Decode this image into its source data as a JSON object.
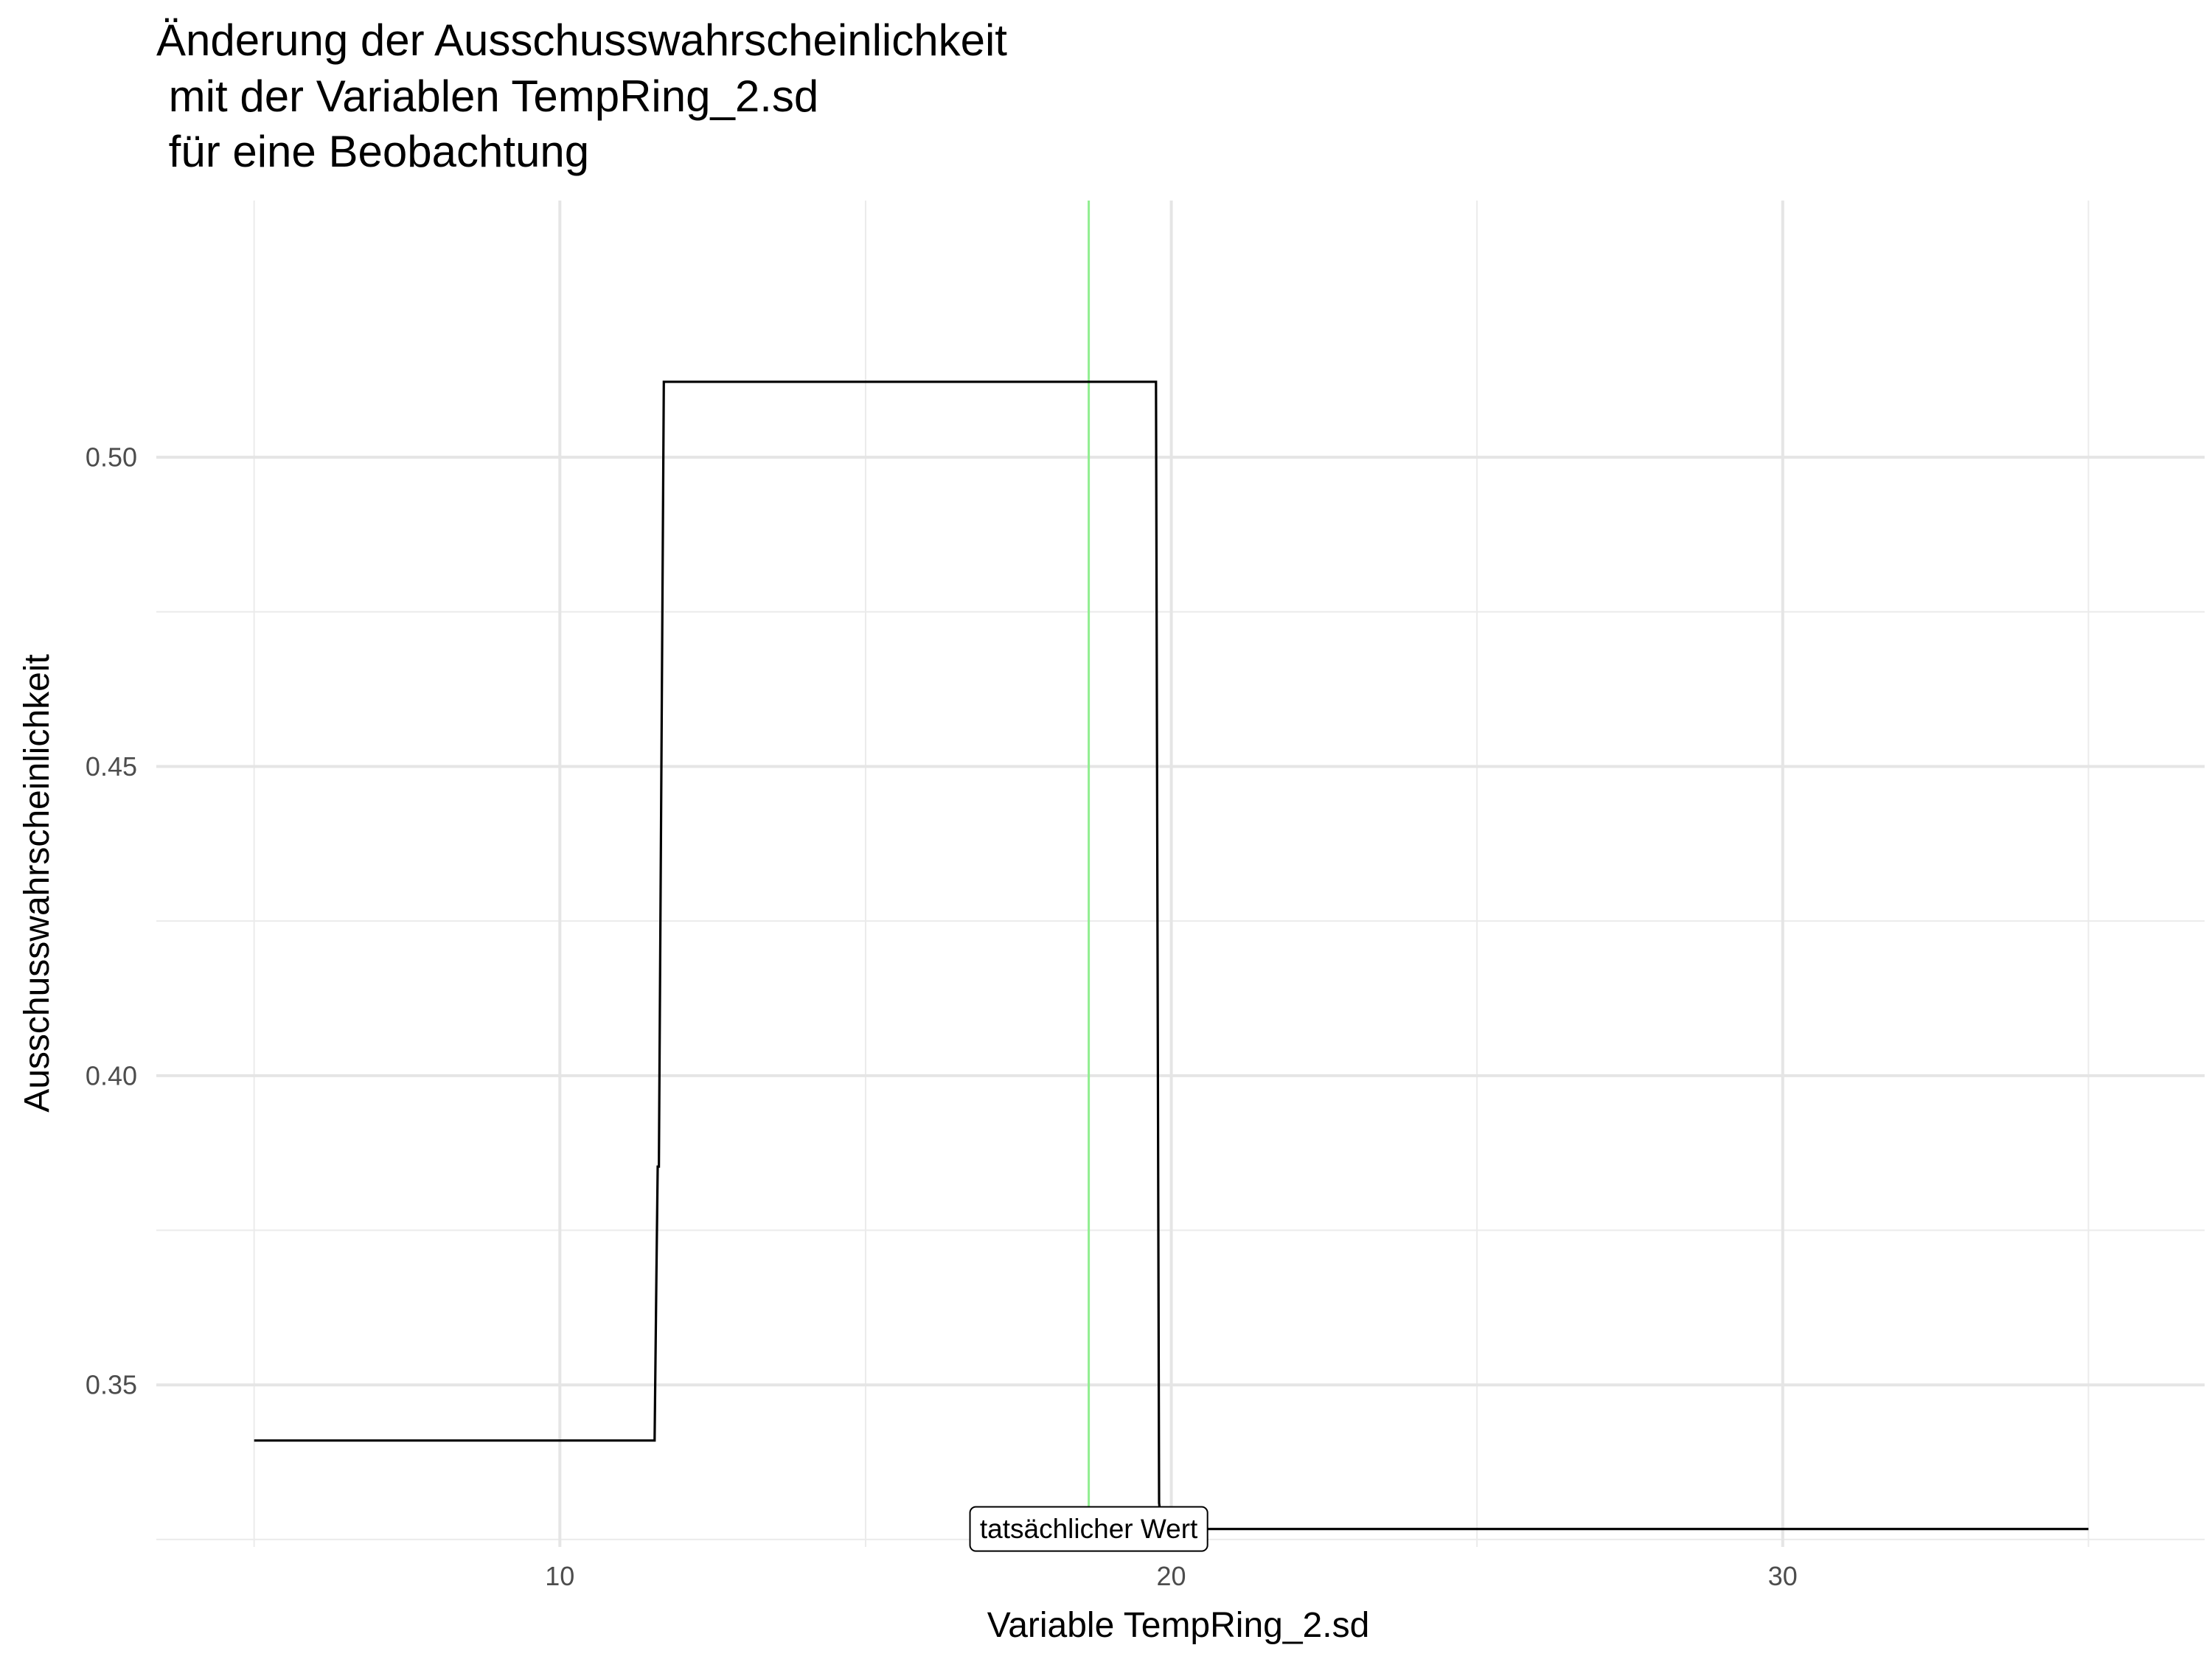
{
  "chart_data": {
    "type": "line",
    "title_lines": [
      "Änderung der Ausschusswahrscheinlichkeit",
      " mit der Variablen TempRing_2.sd",
      " für eine Beobachtung"
    ],
    "xlabel": "Variable TempRing_2.sd",
    "ylabel": "Ausschusswahrscheinlichkeit",
    "xlim": [
      3.4,
      36.9
    ],
    "ylim": [
      0.3238,
      0.5415
    ],
    "x_ticks": [
      10,
      20,
      30
    ],
    "x_tick_labels": [
      "10",
      "20",
      "30"
    ],
    "y_ticks": [
      0.35,
      0.4,
      0.45,
      0.5
    ],
    "y_tick_labels": [
      "0.35",
      "0.40",
      "0.45",
      "0.50"
    ],
    "x_minor_ticks": [
      5,
      15,
      25,
      35
    ],
    "y_minor_ticks": [
      0.325,
      0.375,
      0.425,
      0.475
    ],
    "grid": true,
    "series": [
      {
        "x": [
          5.0,
          11.55,
          11.58,
          11.6,
          11.62,
          11.7,
          19.75,
          19.8,
          19.85,
          35.0
        ],
        "y": [
          0.341,
          0.341,
          0.3683,
          0.3853,
          0.3853,
          0.5122,
          0.5122,
          0.3309,
          0.3267,
          0.3267
        ],
        "color": "#000000"
      }
    ],
    "reference_line": {
      "x": 18.65,
      "color": "#90EE90"
    },
    "annotation": {
      "text": "tatsächlicher Wert",
      "x": 18.65,
      "y": 0.3267
    }
  }
}
